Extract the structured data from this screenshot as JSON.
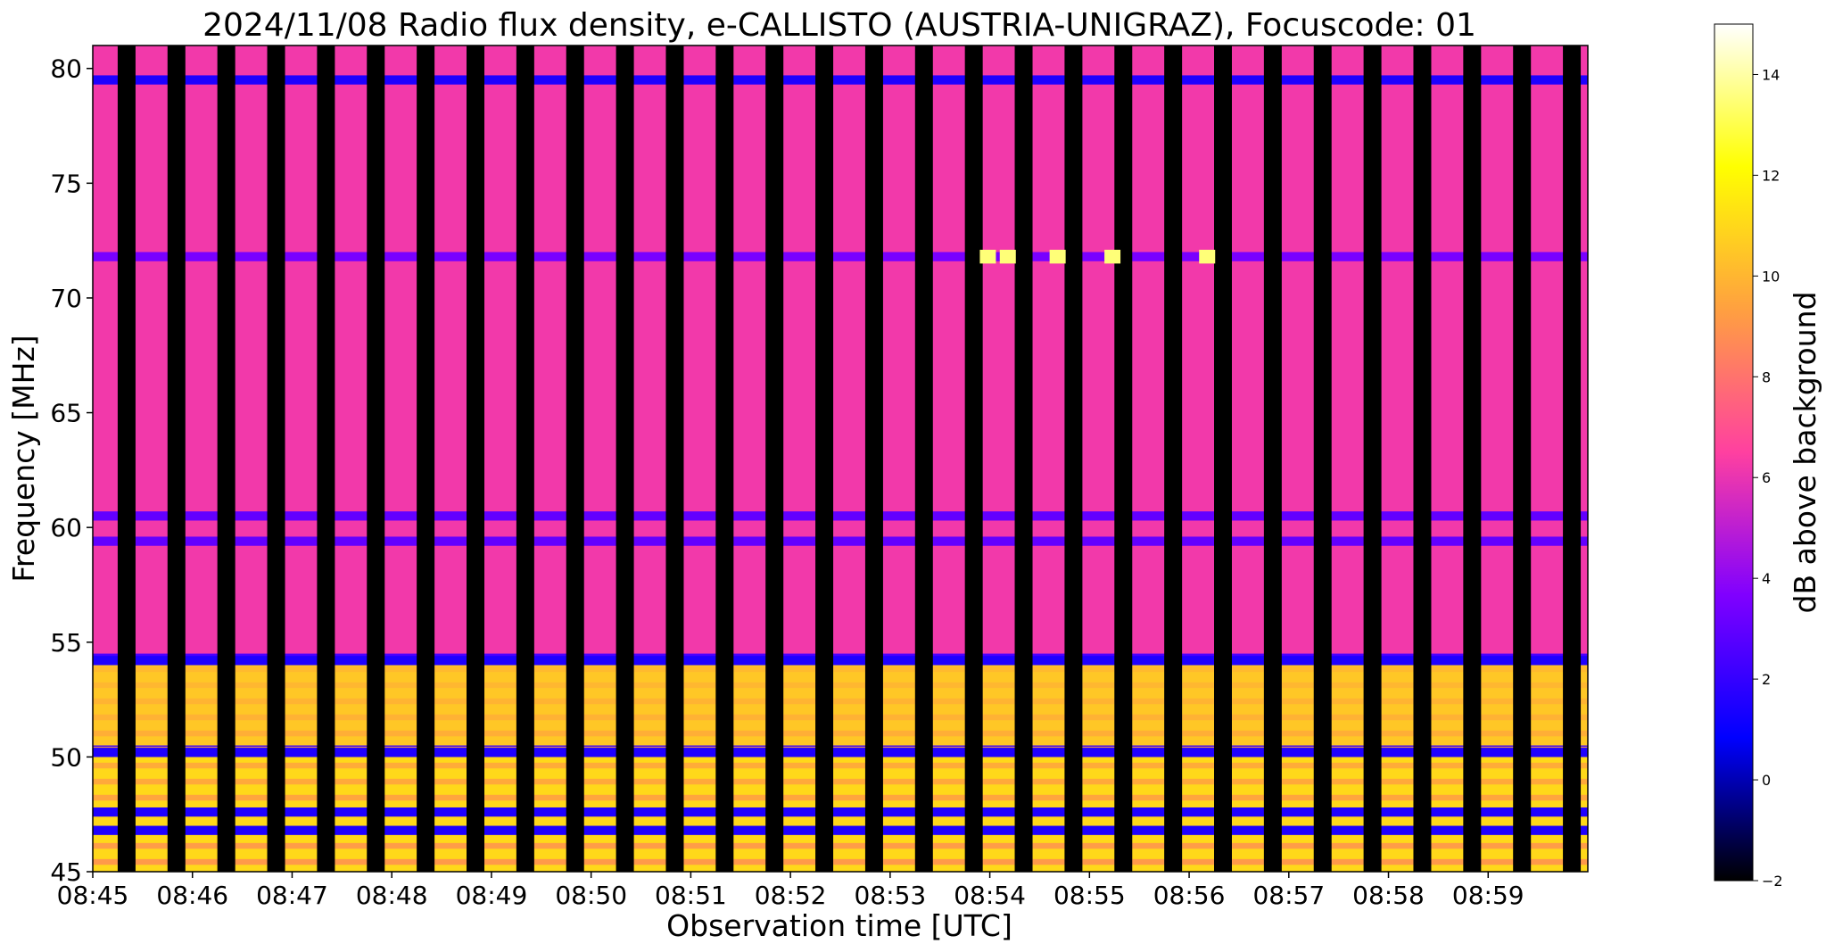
{
  "chart_data": {
    "type": "heatmap",
    "title": "2024/11/08  Radio flux density, e-CALLISTO (AUSTRIA-UNIGRAZ), Focuscode: 01",
    "xlabel": "Observation time [UTC]",
    "ylabel": "Frequency [MHz]",
    "x_ticks": [
      "08:45",
      "08:46",
      "08:47",
      "08:48",
      "08:49",
      "08:50",
      "08:51",
      "08:52",
      "08:53",
      "08:54",
      "08:55",
      "08:56",
      "08:57",
      "08:58",
      "08:59"
    ],
    "xlim": [
      "08:45",
      "09:00"
    ],
    "y_ticks": [
      45,
      50,
      55,
      60,
      65,
      70,
      75,
      80
    ],
    "ylim": [
      45,
      81
    ],
    "colorbar": {
      "label": "dB above background",
      "ticks": [
        -2,
        0,
        2,
        4,
        6,
        8,
        10,
        12,
        14
      ],
      "range": [
        -2,
        15
      ],
      "colormap": "gnuplot2",
      "stops": [
        "#000000",
        "#0000ff",
        "#8000ff",
        "#ff40a0",
        "#ffa040",
        "#ffff00",
        "#ffffff"
      ]
    },
    "features": {
      "strong_band_mhz": [
        45,
        54
      ],
      "interference_lines_mhz": [
        79.5,
        71.8,
        60.5,
        59.4,
        54.2,
        50.2,
        47.6,
        46.8
      ],
      "dropout_gaps": 30
    }
  }
}
